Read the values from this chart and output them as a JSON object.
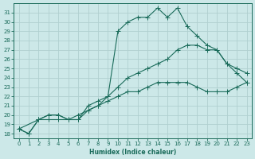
{
  "xlabel": "Humidex (Indice chaleur)",
  "bg_color": "#cce8e8",
  "grid_color": "#b0d0d0",
  "line_color": "#1a6b5a",
  "xlim": [
    -0.5,
    23.5
  ],
  "ylim": [
    17.5,
    32.0
  ],
  "xticks": [
    0,
    1,
    2,
    3,
    4,
    5,
    6,
    7,
    8,
    9,
    10,
    11,
    12,
    13,
    14,
    15,
    16,
    17,
    18,
    19,
    20,
    21,
    22,
    23
  ],
  "yticks": [
    18,
    19,
    20,
    21,
    22,
    23,
    24,
    25,
    26,
    27,
    28,
    29,
    30,
    31
  ],
  "line1_x": [
    0,
    1,
    2,
    3,
    4,
    5,
    6,
    7,
    8,
    9,
    10,
    11,
    12,
    13,
    14,
    15,
    16,
    17,
    18,
    19,
    20,
    21,
    22,
    23
  ],
  "line1_y": [
    18.5,
    18.0,
    19.5,
    20.0,
    20.0,
    19.5,
    19.5,
    20.5,
    21.0,
    22.0,
    29.0,
    30.0,
    30.5,
    30.5,
    31.5,
    30.5,
    31.5,
    29.5,
    28.5,
    27.5,
    27.0,
    25.5,
    24.5,
    23.5
  ],
  "line2_x": [
    0,
    2,
    3,
    4,
    5,
    6,
    7,
    8,
    9,
    10,
    11,
    12,
    13,
    14,
    15,
    16,
    17,
    18,
    19,
    20,
    21,
    22,
    23
  ],
  "line2_y": [
    18.5,
    19.5,
    20.0,
    20.0,
    19.5,
    19.5,
    21.0,
    21.5,
    22.0,
    23.0,
    24.0,
    24.5,
    25.0,
    25.5,
    26.0,
    27.0,
    27.5,
    27.5,
    27.0,
    27.0,
    25.5,
    25.0,
    24.5
  ],
  "line3_x": [
    0,
    1,
    2,
    3,
    4,
    5,
    6,
    7,
    8,
    9,
    10,
    11,
    12,
    13,
    14,
    15,
    16,
    17,
    18,
    19,
    20,
    21,
    22,
    23
  ],
  "line3_y": [
    18.5,
    18.0,
    19.5,
    19.5,
    19.5,
    19.5,
    20.0,
    20.5,
    21.0,
    21.5,
    22.0,
    22.5,
    22.5,
    23.0,
    23.5,
    23.5,
    23.5,
    23.5,
    23.0,
    22.5,
    22.5,
    22.5,
    23.0,
    23.5
  ]
}
